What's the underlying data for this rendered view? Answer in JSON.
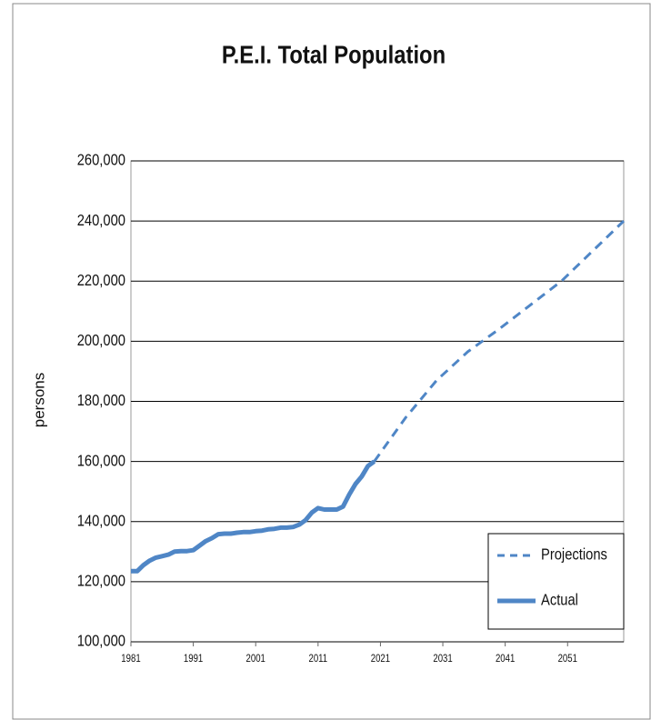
{
  "chart_data": {
    "type": "line",
    "title": "P.E.I. Total Population",
    "y_label": "persons",
    "x": [
      1981,
      1982,
      1983,
      1984,
      1985,
      1986,
      1987,
      1988,
      1989,
      1990,
      1991,
      1992,
      1993,
      1994,
      1995,
      1996,
      1997,
      1998,
      1999,
      2000,
      2001,
      2002,
      2003,
      2004,
      2005,
      2006,
      2007,
      2008,
      2009,
      2010,
      2011,
      2012,
      2013,
      2014,
      2015,
      2016,
      2017,
      2018,
      2019,
      2020,
      2025,
      2030,
      2035,
      2040,
      2045,
      2050,
      2055,
      2060
    ],
    "series": [
      {
        "name": "Projections",
        "color": "#4f86c6",
        "dash": true,
        "values": [
          null,
          null,
          null,
          null,
          null,
          null,
          null,
          null,
          null,
          null,
          null,
          null,
          null,
          null,
          null,
          null,
          null,
          null,
          null,
          null,
          null,
          null,
          null,
          null,
          null,
          null,
          null,
          null,
          null,
          null,
          null,
          null,
          null,
          null,
          null,
          null,
          null,
          null,
          null,
          160000,
          174500,
          187000,
          196500,
          204000,
          212000,
          220000,
          230000,
          240000
        ]
      },
      {
        "name": "Actual",
        "color": "#4f86c6",
        "dash": false,
        "values": [
          123500,
          123500,
          125500,
          127000,
          128000,
          128500,
          129000,
          130000,
          130200,
          130200,
          130500,
          132000,
          133500,
          134500,
          135800,
          136000,
          136000,
          136300,
          136500,
          136500,
          136800,
          137000,
          137400,
          137600,
          138000,
          138000,
          138200,
          139000,
          140500,
          143000,
          144500,
          144000,
          144000,
          144000,
          145000,
          149000,
          152500,
          155000,
          158500,
          160000,
          null,
          null,
          null,
          null,
          null,
          null,
          null,
          null
        ]
      }
    ],
    "xlim": [
      1981,
      2060
    ],
    "xticks": [
      1981,
      1991,
      2001,
      2011,
      2021,
      2031,
      2041,
      2051
    ],
    "ylim": [
      100000,
      260000
    ],
    "yticks": [
      {
        "value": 100000,
        "label": "100,000"
      },
      {
        "value": 120000,
        "label": "120,000"
      },
      {
        "value": 140000,
        "label": "140,000"
      },
      {
        "value": 160000,
        "label": "160,000"
      },
      {
        "value": 180000,
        "label": "180,000"
      },
      {
        "value": 200000,
        "label": "200,000"
      },
      {
        "value": 220000,
        "label": "220,000"
      },
      {
        "value": 240000,
        "label": "240,000"
      },
      {
        "value": 260000,
        "label": "260,000"
      }
    ],
    "grid": true,
    "legend": "lower right"
  }
}
